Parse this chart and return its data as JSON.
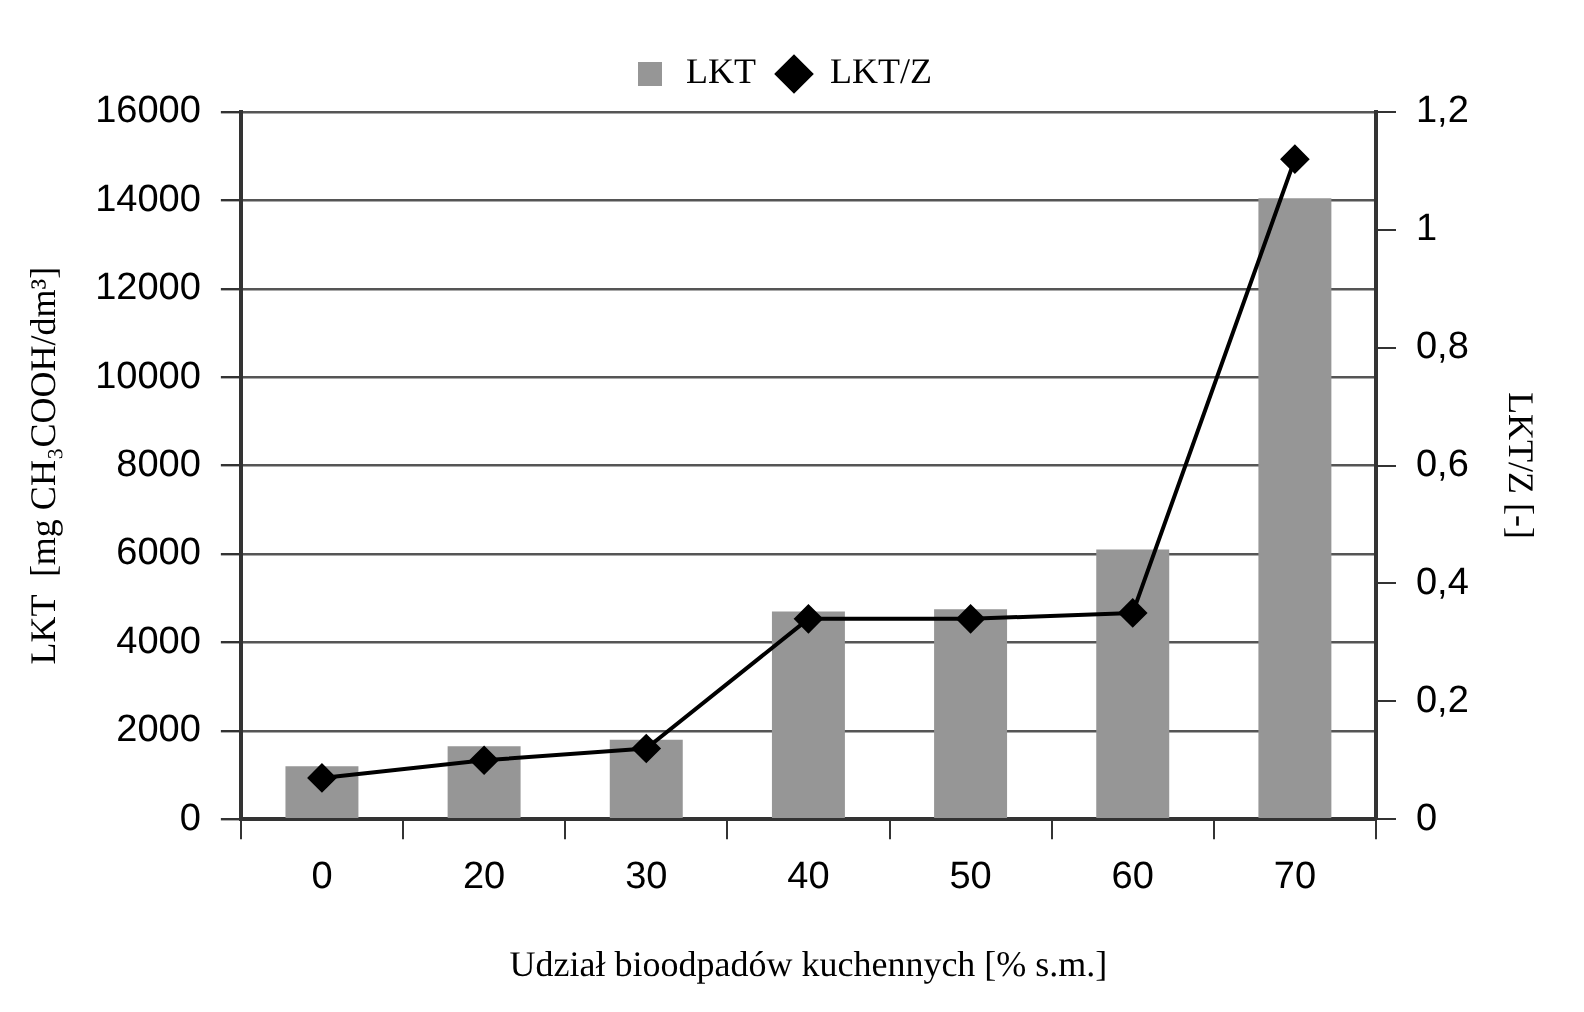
{
  "chart_data": {
    "type": "bar",
    "xlabel": "Udział bioodpadów kuchennych [% s.m.]",
    "ylabel": "LKT  [mg CH₃COOH/dm³]",
    "y2label": "LKT/Z [-]",
    "categories": [
      "0",
      "20",
      "30",
      "40",
      "50",
      "60",
      "70"
    ],
    "series": [
      {
        "name": "LKT",
        "color": "#969696",
        "values": [
          1200,
          1650,
          1800,
          4700,
          4750,
          6100,
          14050
        ]
      },
      {
        "name": "LKT/Z",
        "type": "line",
        "axis": "y2",
        "color": "#000000",
        "marker": "diamond",
        "values": [
          0.07,
          0.1,
          0.12,
          0.34,
          0.34,
          0.35,
          1.12
        ]
      }
    ],
    "ylim": [
      0,
      16000
    ],
    "yticks": [
      0,
      2000,
      4000,
      6000,
      8000,
      10000,
      12000,
      14000,
      16000
    ],
    "y2lim": [
      0,
      1.2
    ],
    "y2ticks": [
      0,
      {
        "value": 0.2,
        "label": "0,2"
      },
      {
        "value": 0.4,
        "label": "0,4"
      },
      {
        "value": 0.6,
        "label": "0,6"
      },
      {
        "value": 0.8,
        "label": "0,8"
      },
      1,
      {
        "value": 1.2,
        "label": "1,2"
      }
    ],
    "grid": "y",
    "legend": "top"
  }
}
